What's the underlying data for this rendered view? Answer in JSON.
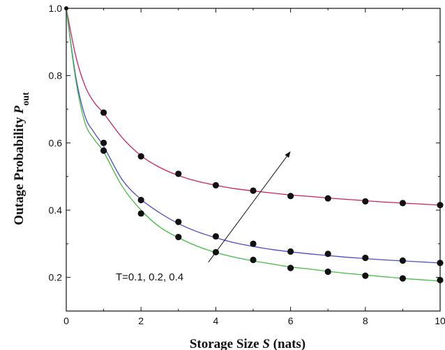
{
  "chart_data": {
    "type": "line",
    "xlabel": {
      "prefix": "Storage Size ",
      "var": "S",
      "suffix": " (nats)"
    },
    "ylabel": {
      "prefix": "Outage Probability ",
      "var": "P",
      "sub": "out"
    },
    "xlim": [
      0,
      10
    ],
    "ylim": [
      0.1,
      1.0
    ],
    "xticks": [
      0,
      2,
      4,
      6,
      8,
      10
    ],
    "xtick_labels": [
      "0",
      "2",
      "4",
      "6",
      "8",
      "10"
    ],
    "yticks": [
      0.2,
      0.4,
      0.6,
      0.8,
      1.0
    ],
    "ytick_labels": [
      "0.2",
      "0.4",
      "0.6",
      "0.8",
      "1.0"
    ],
    "grid": false,
    "annotation": {
      "text": "T=0.1, 0.2, 0.4",
      "arrow_from": [
        3.8,
        0.245
      ],
      "arrow_to": [
        6.0,
        0.575
      ]
    },
    "series": [
      {
        "color": "#cc2266",
        "curve": {
          "x": [
            0,
            0.25,
            0.5,
            0.75,
            1,
            1.5,
            2,
            2.5,
            3,
            3.5,
            4,
            4.5,
            5,
            5.5,
            6,
            6.5,
            7,
            7.5,
            8,
            8.5,
            9,
            9.5,
            10
          ],
          "y": [
            1.0,
            0.86,
            0.77,
            0.72,
            0.688,
            0.615,
            0.562,
            0.527,
            0.503,
            0.486,
            0.474,
            0.464,
            0.457,
            0.451,
            0.445,
            0.441,
            0.436,
            0.432,
            0.428,
            0.424,
            0.421,
            0.418,
            0.415
          ]
        },
        "points": {
          "x": [
            1,
            2,
            3,
            4,
            5,
            6,
            7,
            8,
            9,
            10
          ],
          "y": [
            0.69,
            0.56,
            0.508,
            0.474,
            0.458,
            0.442,
            0.435,
            0.426,
            0.421,
            0.415
          ]
        }
      },
      {
        "color": "#4b4bcc",
        "curve": {
          "x": [
            0,
            0.25,
            0.5,
            0.75,
            1,
            1.5,
            2,
            2.5,
            3,
            3.5,
            4,
            4.5,
            5,
            5.5,
            6,
            6.5,
            7,
            7.5,
            8,
            8.5,
            9,
            9.5,
            10
          ],
          "y": [
            1.0,
            0.8,
            0.68,
            0.63,
            0.59,
            0.49,
            0.432,
            0.392,
            0.36,
            0.336,
            0.318,
            0.303,
            0.292,
            0.283,
            0.276,
            0.27,
            0.265,
            0.26,
            0.256,
            0.252,
            0.249,
            0.246,
            0.243
          ]
        },
        "points": {
          "x": [
            1,
            2,
            3,
            4,
            5,
            6,
            7,
            8,
            9,
            10
          ],
          "y": [
            0.6,
            0.43,
            0.365,
            0.322,
            0.3,
            0.277,
            0.27,
            0.258,
            0.25,
            0.243
          ]
        }
      },
      {
        "color": "#44bb44",
        "curve": {
          "x": [
            0,
            0.25,
            0.5,
            0.75,
            1,
            1.5,
            2,
            2.5,
            3,
            3.5,
            4,
            4.5,
            5,
            5.5,
            6,
            6.5,
            7,
            7.5,
            8,
            8.5,
            9,
            9.5,
            10
          ],
          "y": [
            1.0,
            0.79,
            0.66,
            0.61,
            0.573,
            0.47,
            0.4,
            0.35,
            0.318,
            0.293,
            0.274,
            0.26,
            0.249,
            0.24,
            0.231,
            0.225,
            0.218,
            0.212,
            0.207,
            0.202,
            0.197,
            0.193,
            0.189
          ]
        },
        "points": {
          "x": [
            1,
            2,
            3,
            4,
            5,
            6,
            7,
            8,
            9,
            10
          ],
          "y": [
            0.577,
            0.39,
            0.32,
            0.275,
            0.252,
            0.228,
            0.217,
            0.205,
            0.197,
            0.192
          ]
        }
      }
    ]
  }
}
